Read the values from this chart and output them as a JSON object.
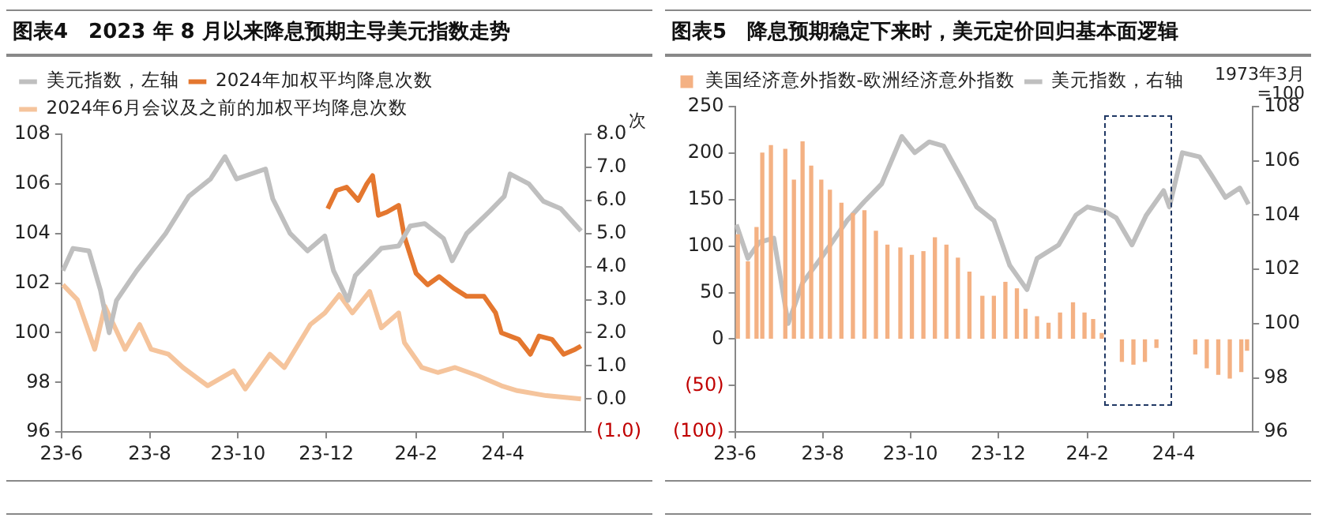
{
  "chart_data": [
    {
      "type": "line",
      "title": "图表4　2023 年 8 月以来降息预期主导美元指数走势",
      "y2label": "次",
      "legend": "top left",
      "xlim": [
        "2023-06-01",
        "2024-05-28"
      ],
      "xticks": [
        {
          "value": "2023-06-01",
          "label": "23-6"
        },
        {
          "value": "2023-08-01",
          "label": "23-8"
        },
        {
          "value": "2023-10-01",
          "label": "23-10"
        },
        {
          "value": "2023-12-01",
          "label": "23-12"
        },
        {
          "value": "2024-02-01",
          "label": "24-2"
        },
        {
          "value": "2024-04-01",
          "label": "24-4"
        }
      ],
      "ylim": [
        96,
        108
      ],
      "yticks": [
        96,
        98,
        100,
        102,
        104,
        106,
        108
      ],
      "y2lim": [
        -1,
        8
      ],
      "y2ticks": [
        {
          "value": -1,
          "label": "(1.0)"
        },
        {
          "value": 0,
          "label": "0.0"
        },
        {
          "value": 1,
          "label": "1.0"
        },
        {
          "value": 2,
          "label": "2.0"
        },
        {
          "value": 3,
          "label": "3.0"
        },
        {
          "value": 4,
          "label": "4.0"
        },
        {
          "value": 5,
          "label": "5.0"
        },
        {
          "value": 6,
          "label": "6.0"
        },
        {
          "value": 7,
          "label": "7.0"
        },
        {
          "value": 8,
          "label": "8.0"
        }
      ],
      "series": [
        {
          "name": "美元指数，左轴",
          "color": "#bfbfbf",
          "x": [
            "2023-06-02",
            "2023-06-09",
            "2023-06-20",
            "2023-06-28",
            "2023-07-04",
            "2023-07-09",
            "2023-07-23",
            "2023-08-12",
            "2023-08-28",
            "2023-09-12",
            "2023-09-22",
            "2023-09-30",
            "2023-10-20",
            "2023-10-25",
            "2023-11-06",
            "2023-11-18",
            "2023-11-30",
            "2023-12-06",
            "2023-12-16",
            "2023-12-21",
            "2024-01-08",
            "2024-01-20",
            "2024-01-28",
            "2024-02-07",
            "2024-02-20",
            "2024-02-26",
            "2024-03-07",
            "2024-03-23",
            "2024-04-02",
            "2024-04-06",
            "2024-04-19",
            "2024-04-29",
            "2024-05-11",
            "2024-05-25"
          ],
          "values": [
            102.5,
            103.4,
            103.3,
            101.7,
            100.0,
            101.3,
            102.5,
            104.0,
            105.5,
            106.2,
            107.1,
            106.2,
            106.6,
            105.4,
            104.0,
            103.3,
            103.9,
            102.5,
            101.3,
            102.3,
            103.4,
            103.5,
            104.3,
            104.4,
            103.8,
            102.9,
            104.0,
            104.9,
            105.5,
            106.4,
            106.0,
            105.3,
            105.0,
            104.1
          ]
        },
        {
          "name": "2024年加权平均降息次数",
          "color": "#e4772f",
          "axis": "y2",
          "x": [
            "2023-12-02",
            "2023-12-08",
            "2023-12-15",
            "2023-12-23",
            "2023-12-29",
            "2024-01-02",
            "2024-01-06",
            "2024-01-12",
            "2024-01-20",
            "2024-01-24",
            "2024-02-01",
            "2024-02-09",
            "2024-02-17",
            "2024-02-27",
            "2024-03-07",
            "2024-03-19",
            "2024-03-27",
            "2024-03-31",
            "2024-04-12",
            "2024-04-20",
            "2024-04-26",
            "2024-05-05",
            "2024-05-13",
            "2024-05-21",
            "2024-05-25"
          ],
          "values": [
            5.75,
            6.3,
            6.4,
            6.0,
            6.5,
            6.75,
            5.55,
            5.65,
            5.85,
            4.9,
            3.8,
            3.45,
            3.7,
            3.35,
            3.1,
            3.1,
            2.6,
            2.0,
            1.8,
            1.35,
            1.9,
            1.8,
            1.35,
            1.5,
            1.6
          ]
        },
        {
          "name": "2024年6月会议及之前的加权平均降息次数",
          "color": "#f5c49c",
          "axis": "y2",
          "x": [
            "2023-06-02",
            "2023-06-12",
            "2023-06-24",
            "2023-07-01",
            "2023-07-07",
            "2023-07-15",
            "2023-07-25",
            "2023-08-02",
            "2023-08-14",
            "2023-08-24",
            "2023-09-10",
            "2023-09-28",
            "2023-10-06",
            "2023-10-23",
            "2023-11-02",
            "2023-11-20",
            "2023-11-30",
            "2023-12-10",
            "2023-12-19",
            "2023-12-31",
            "2024-01-08",
            "2024-01-20",
            "2024-01-24",
            "2024-02-05",
            "2024-02-16",
            "2024-02-28",
            "2024-03-15",
            "2024-03-31",
            "2024-04-11",
            "2024-05-01",
            "2024-05-25"
          ],
          "values": [
            3.45,
            3.0,
            1.5,
            2.8,
            2.25,
            1.5,
            2.25,
            1.5,
            1.35,
            0.95,
            0.4,
            0.85,
            0.3,
            1.35,
            0.95,
            2.25,
            2.6,
            3.15,
            2.6,
            3.25,
            2.15,
            2.6,
            1.7,
            0.95,
            0.8,
            0.95,
            0.7,
            0.4,
            0.25,
            0.1,
            0.0
          ]
        }
      ]
    },
    {
      "type": "bar",
      "title": "图表5　降息预期稳定下来时，美元定价回归基本面逻辑",
      "y2label": "1973年3月=100",
      "legend": "top left",
      "xlim": [
        "2023-06-01",
        "2024-05-26"
      ],
      "xticks": [
        {
          "value": "2023-06-01",
          "label": "23-6"
        },
        {
          "value": "2023-08-01",
          "label": "23-8"
        },
        {
          "value": "2023-10-01",
          "label": "23-10"
        },
        {
          "value": "2023-12-01",
          "label": "23-12"
        },
        {
          "value": "2024-02-01",
          "label": "24-2"
        },
        {
          "value": "2024-04-01",
          "label": "24-4"
        }
      ],
      "ylim": [
        -100,
        250
      ],
      "yticks": [
        {
          "value": -100,
          "label": "(100)"
        },
        {
          "value": -50,
          "label": "(50)"
        },
        0,
        50,
        100,
        150,
        200,
        250
      ],
      "y2lim": [
        96,
        108
      ],
      "y2ticks": [
        96,
        98,
        100,
        102,
        104,
        106,
        108
      ],
      "series": [
        {
          "name": "美国经济意外指数-欧洲经济意外指数",
          "color": "#f4b183",
          "x": [
            "2023-06-03",
            "2023-06-10",
            "2023-06-16",
            "2023-06-20",
            "2023-06-26",
            "2023-07-06",
            "2023-07-12",
            "2023-07-18",
            "2023-07-24",
            "2023-07-31",
            "2023-08-06",
            "2023-08-14",
            "2023-08-22",
            "2023-08-30",
            "2023-09-07",
            "2023-09-15",
            "2023-09-24",
            "2023-10-02",
            "2023-10-10",
            "2023-10-18",
            "2023-10-26",
            "2023-11-03",
            "2023-11-11",
            "2023-11-20",
            "2023-11-28",
            "2023-12-06",
            "2023-12-14",
            "2023-12-20",
            "2023-12-28",
            "2024-01-05",
            "2024-01-13",
            "2024-01-22",
            "2024-01-30",
            "2024-02-05",
            "2024-02-11",
            "2024-02-25",
            "2024-03-04",
            "2024-03-12",
            "2024-03-20",
            "2024-04-16",
            "2024-04-24",
            "2024-05-02",
            "2024-05-10",
            "2024-05-18",
            "2024-05-22"
          ],
          "values": [
            112,
            83,
            120,
            200,
            208,
            204,
            171,
            212,
            186,
            171,
            160,
            146,
            135,
            138,
            116,
            101,
            98,
            90,
            94,
            109,
            101,
            87,
            72,
            46,
            46,
            61,
            54,
            32,
            24,
            17,
            28,
            39,
            28,
            21,
            6,
            -24,
            -27,
            -24,
            -9,
            -16,
            -31,
            -38,
            -42,
            -35,
            -12
          ]
        },
        {
          "name": "美元指数，右轴",
          "type": "line",
          "axis": "y2",
          "color": "#bfbfbf",
          "x": [
            "2023-06-02",
            "2023-06-10",
            "2023-06-18",
            "2023-06-28",
            "2023-07-08",
            "2023-07-18",
            "2023-08-01",
            "2023-08-18",
            "2023-08-30",
            "2023-09-11",
            "2023-09-25",
            "2023-10-04",
            "2023-10-14",
            "2023-10-24",
            "2023-11-06",
            "2023-11-16",
            "2023-11-28",
            "2023-12-09",
            "2023-12-21",
            "2023-12-28",
            "2024-01-12",
            "2024-01-24",
            "2024-02-01",
            "2024-02-13",
            "2024-02-21",
            "2024-03-03",
            "2024-03-13",
            "2024-03-25",
            "2024-03-29",
            "2024-04-07",
            "2024-04-19",
            "2024-04-27",
            "2024-05-07",
            "2024-05-17",
            "2024-05-23"
          ],
          "values": [
            103.65,
            102.4,
            103.0,
            103.15,
            100.0,
            101.5,
            102.5,
            103.8,
            104.5,
            105.15,
            106.9,
            106.3,
            106.7,
            106.55,
            105.3,
            104.3,
            103.8,
            102.15,
            101.25,
            102.4,
            102.9,
            104.0,
            104.3,
            104.15,
            103.9,
            102.9,
            104.0,
            104.9,
            104.3,
            106.3,
            106.15,
            105.5,
            104.65,
            105.0,
            104.4
          ]
        }
      ]
    }
  ]
}
